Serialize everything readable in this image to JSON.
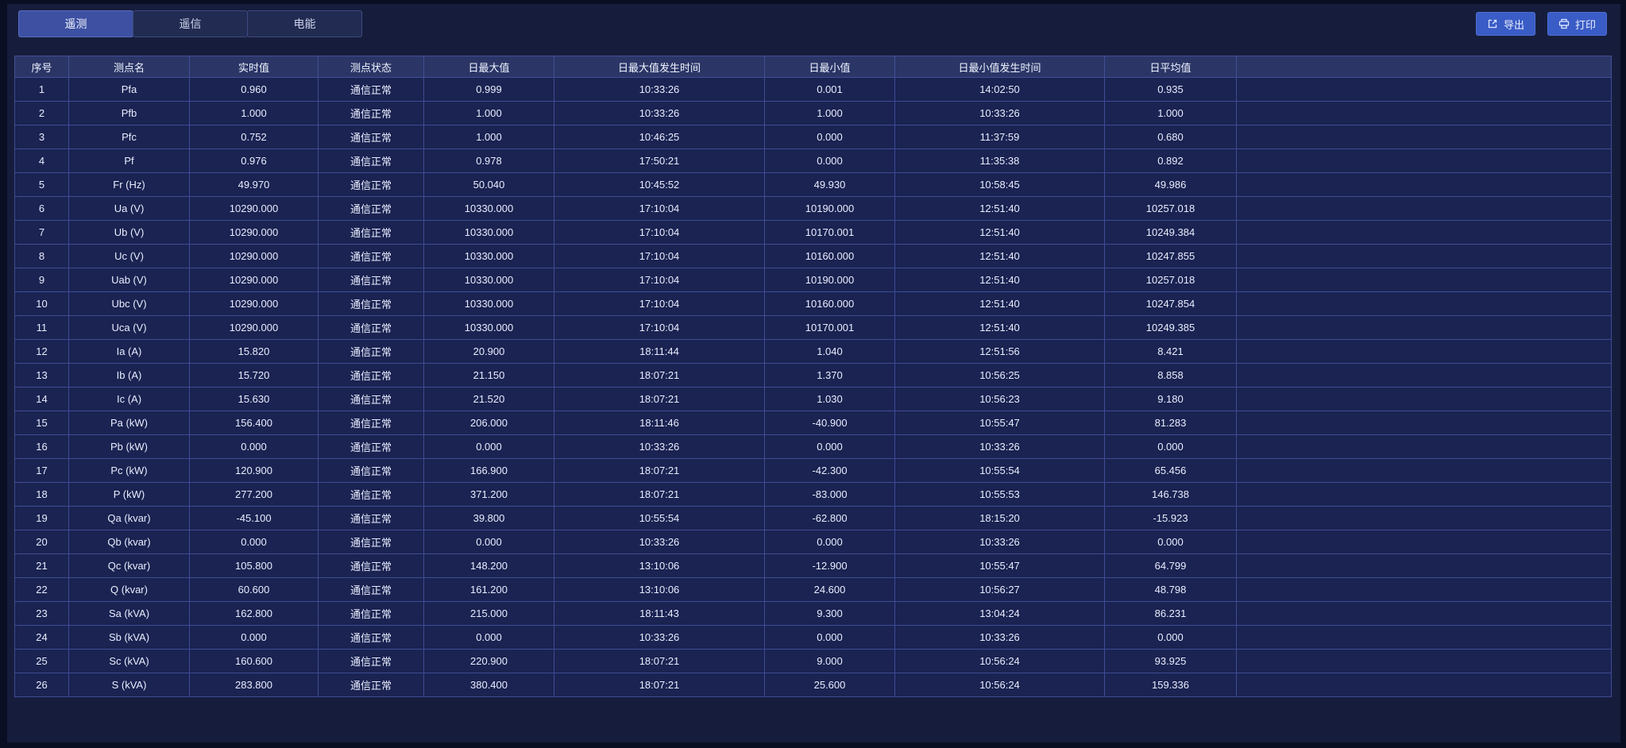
{
  "tabs": [
    {
      "id": "telemetry",
      "label": "遥测",
      "active": true
    },
    {
      "id": "telesignal",
      "label": "遥信",
      "active": false
    },
    {
      "id": "energy",
      "label": "电能",
      "active": false
    }
  ],
  "toolbar": {
    "export_label": "导出",
    "print_label": "打印"
  },
  "table": {
    "columns": [
      "序号",
      "测点名",
      "实时值",
      "测点状态",
      "日最大值",
      "日最大值发生时间",
      "日最小值",
      "日最小值发生时间",
      "日平均值"
    ],
    "rows": [
      [
        "1",
        "Pfa",
        "0.960",
        "通信正常",
        "0.999",
        "10:33:26",
        "0.001",
        "14:02:50",
        "0.935"
      ],
      [
        "2",
        "Pfb",
        "1.000",
        "通信正常",
        "1.000",
        "10:33:26",
        "1.000",
        "10:33:26",
        "1.000"
      ],
      [
        "3",
        "Pfc",
        "0.752",
        "通信正常",
        "1.000",
        "10:46:25",
        "0.000",
        "11:37:59",
        "0.680"
      ],
      [
        "4",
        "Pf",
        "0.976",
        "通信正常",
        "0.978",
        "17:50:21",
        "0.000",
        "11:35:38",
        "0.892"
      ],
      [
        "5",
        "Fr (Hz)",
        "49.970",
        "通信正常",
        "50.040",
        "10:45:52",
        "49.930",
        "10:58:45",
        "49.986"
      ],
      [
        "6",
        "Ua (V)",
        "10290.000",
        "通信正常",
        "10330.000",
        "17:10:04",
        "10190.000",
        "12:51:40",
        "10257.018"
      ],
      [
        "7",
        "Ub (V)",
        "10290.000",
        "通信正常",
        "10330.000",
        "17:10:04",
        "10170.001",
        "12:51:40",
        "10249.384"
      ],
      [
        "8",
        "Uc (V)",
        "10290.000",
        "通信正常",
        "10330.000",
        "17:10:04",
        "10160.000",
        "12:51:40",
        "10247.855"
      ],
      [
        "9",
        "Uab (V)",
        "10290.000",
        "通信正常",
        "10330.000",
        "17:10:04",
        "10190.000",
        "12:51:40",
        "10257.018"
      ],
      [
        "10",
        "Ubc (V)",
        "10290.000",
        "通信正常",
        "10330.000",
        "17:10:04",
        "10160.000",
        "12:51:40",
        "10247.854"
      ],
      [
        "11",
        "Uca (V)",
        "10290.000",
        "通信正常",
        "10330.000",
        "17:10:04",
        "10170.001",
        "12:51:40",
        "10249.385"
      ],
      [
        "12",
        "Ia (A)",
        "15.820",
        "通信正常",
        "20.900",
        "18:11:44",
        "1.040",
        "12:51:56",
        "8.421"
      ],
      [
        "13",
        "Ib (A)",
        "15.720",
        "通信正常",
        "21.150",
        "18:07:21",
        "1.370",
        "10:56:25",
        "8.858"
      ],
      [
        "14",
        "Ic (A)",
        "15.630",
        "通信正常",
        "21.520",
        "18:07:21",
        "1.030",
        "10:56:23",
        "9.180"
      ],
      [
        "15",
        "Pa (kW)",
        "156.400",
        "通信正常",
        "206.000",
        "18:11:46",
        "-40.900",
        "10:55:47",
        "81.283"
      ],
      [
        "16",
        "Pb (kW)",
        "0.000",
        "通信正常",
        "0.000",
        "10:33:26",
        "0.000",
        "10:33:26",
        "0.000"
      ],
      [
        "17",
        "Pc (kW)",
        "120.900",
        "通信正常",
        "166.900",
        "18:07:21",
        "-42.300",
        "10:55:54",
        "65.456"
      ],
      [
        "18",
        "P (kW)",
        "277.200",
        "通信正常",
        "371.200",
        "18:07:21",
        "-83.000",
        "10:55:53",
        "146.738"
      ],
      [
        "19",
        "Qa (kvar)",
        "-45.100",
        "通信正常",
        "39.800",
        "10:55:54",
        "-62.800",
        "18:15:20",
        "-15.923"
      ],
      [
        "20",
        "Qb (kvar)",
        "0.000",
        "通信正常",
        "0.000",
        "10:33:26",
        "0.000",
        "10:33:26",
        "0.000"
      ],
      [
        "21",
        "Qc (kvar)",
        "105.800",
        "通信正常",
        "148.200",
        "13:10:06",
        "-12.900",
        "10:55:47",
        "64.799"
      ],
      [
        "22",
        "Q (kvar)",
        "60.600",
        "通信正常",
        "161.200",
        "13:10:06",
        "24.600",
        "10:56:27",
        "48.798"
      ],
      [
        "23",
        "Sa (kVA)",
        "162.800",
        "通信正常",
        "215.000",
        "18:11:43",
        "9.300",
        "13:04:24",
        "86.231"
      ],
      [
        "24",
        "Sb (kVA)",
        "0.000",
        "通信正常",
        "0.000",
        "10:33:26",
        "0.000",
        "10:33:26",
        "0.000"
      ],
      [
        "25",
        "Sc (kVA)",
        "160.600",
        "通信正常",
        "220.900",
        "18:07:21",
        "9.000",
        "10:56:24",
        "93.925"
      ],
      [
        "26",
        "S (kVA)",
        "283.800",
        "通信正常",
        "380.400",
        "18:07:21",
        "25.600",
        "10:56:24",
        "159.336"
      ]
    ]
  },
  "colors": {
    "active_tab": "#3d50a2",
    "button": "#3a5cc6",
    "table_header_bg": "#2b3667",
    "row_bg": "#1a2351",
    "grid_border": "#3f4c96",
    "panel_bg": "#161d3c",
    "page_bg": "#0a0e23"
  }
}
